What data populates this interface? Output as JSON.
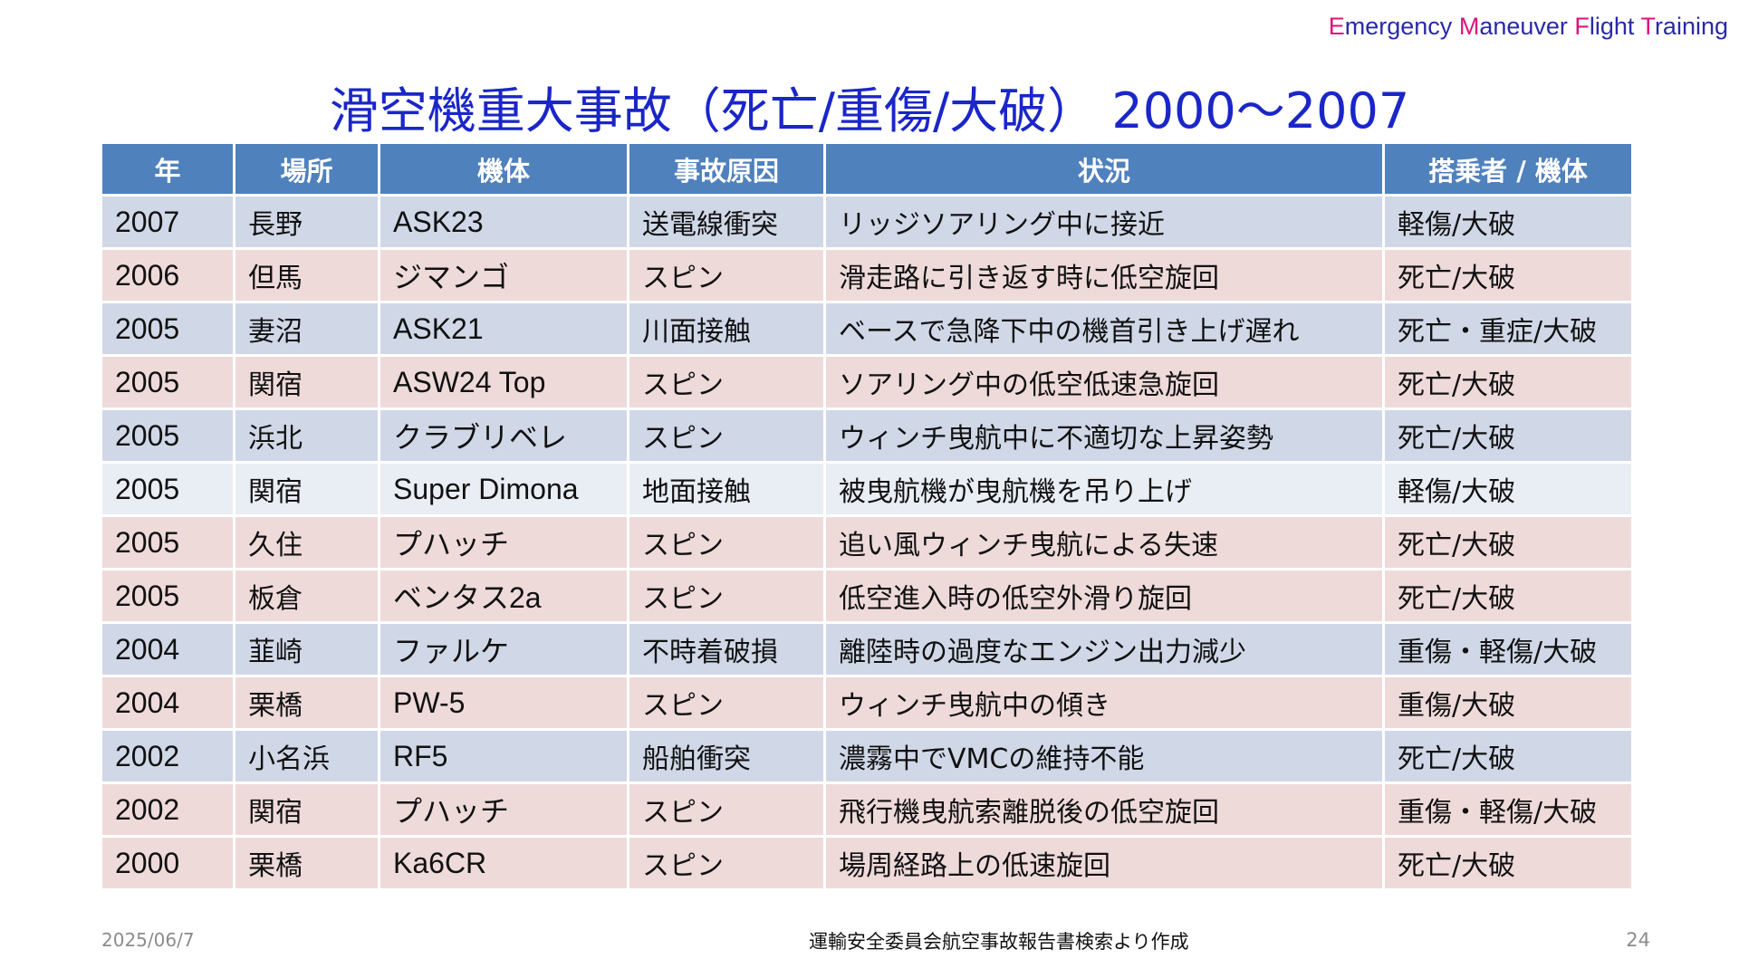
{
  "brand": {
    "parts": [
      {
        "initial": "E",
        "rest": "mergency "
      },
      {
        "initial": "M",
        "rest": "aneuver "
      },
      {
        "initial": "F",
        "rest": "light "
      },
      {
        "initial": "T",
        "rest": "raining"
      }
    ]
  },
  "title": "滑空機重大事故（死亡/重傷/大破） 2000～2007",
  "table": {
    "headers": [
      "年",
      "場所",
      "機体",
      "事故原因",
      "状況",
      "搭乗者 / 機体"
    ],
    "rows": [
      {
        "year": "2007",
        "place": "長野",
        "aircraft": "ASK23",
        "cause": "送電線衝突",
        "situation": "リッジソアリング中に接近",
        "result": "軽傷/大破"
      },
      {
        "year": "2006",
        "place": "但馬",
        "aircraft": "ジマンゴ",
        "cause": "スピン",
        "situation": "滑走路に引き返す時に低空旋回",
        "result": "死亡/大破"
      },
      {
        "year": "2005",
        "place": "妻沼",
        "aircraft": "ASK21",
        "cause": "川面接触",
        "situation": "ベースで急降下中の機首引き上げ遅れ",
        "result": "死亡・重症/大破"
      },
      {
        "year": "2005",
        "place": "関宿",
        "aircraft": "ASW24 Top",
        "cause": "スピン",
        "situation": "ソアリング中の低空低速急旋回",
        "result": "死亡/大破"
      },
      {
        "year": "2005",
        "place": "浜北",
        "aircraft": "クラブリベレ",
        "cause": "スピン",
        "situation": "ウィンチ曳航中に不適切な上昇姿勢",
        "result": "死亡/大破"
      },
      {
        "year": "2005",
        "place": "関宿",
        "aircraft": "Super Dimona",
        "cause": "地面接触",
        "situation": "被曳航機が曳航機を吊り上げ",
        "result": "軽傷/大破"
      },
      {
        "year": "2005",
        "place": "久住",
        "aircraft": "プハッチ",
        "cause": "スピン",
        "situation": "追い風ウィンチ曳航による失速",
        "result": "死亡/大破"
      },
      {
        "year": "2005",
        "place": "板倉",
        "aircraft": "ベンタス2a",
        "cause": "スピン",
        "situation": "低空進入時の低空外滑り旋回",
        "result": "死亡/大破"
      },
      {
        "year": "2004",
        "place": "韮崎",
        "aircraft": "ファルケ",
        "cause": "不時着破損",
        "situation": "離陸時の過度なエンジン出力減少",
        "result": "重傷・軽傷/大破"
      },
      {
        "year": "2004",
        "place": "栗橋",
        "aircraft": "PW-5",
        "cause": "スピン",
        "situation": "ウィンチ曳航中の傾き",
        "result": "重傷/大破"
      },
      {
        "year": "2002",
        "place": "小名浜",
        "aircraft": "RF5",
        "cause": "船舶衝突",
        "situation": "濃霧中でVMCの維持不能",
        "result": "死亡/大破"
      },
      {
        "year": "2002",
        "place": "関宿",
        "aircraft": "プハッチ",
        "cause": "スピン",
        "situation": "飛行機曳航索離脱後の低空旋回",
        "result": "重傷・軽傷/大破"
      },
      {
        "year": "2000",
        "place": "栗橋",
        "aircraft": "Ka6CR",
        "cause": "スピン",
        "situation": "場周経路上の低速旋回",
        "result": "死亡/大破"
      }
    ]
  },
  "row_colors": {
    "header": "#4f81bd",
    "blue": "#d0d8e8",
    "pink": "#efdada",
    "light": "#e9edf4"
  },
  "row_styles": [
    "blue",
    "pink",
    "blue",
    "pink",
    "blue",
    "light",
    "pink",
    "pink",
    "blue",
    "pink",
    "blue",
    "pink",
    "pink"
  ],
  "footer": {
    "date": "2025/06/7",
    "source": "運輸安全委員会航空事故報告書検索より作成",
    "page": "24"
  }
}
